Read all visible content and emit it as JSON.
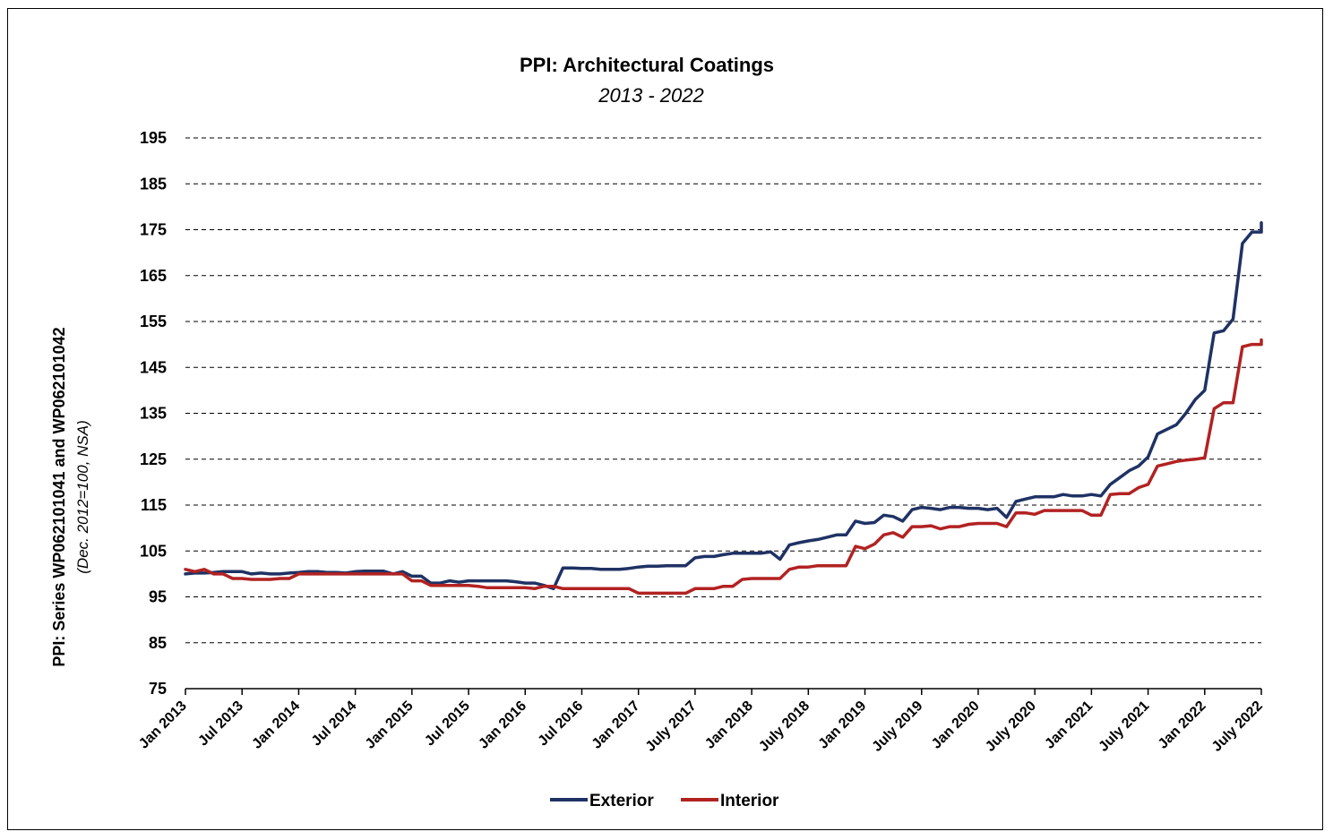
{
  "chart_data": {
    "type": "line",
    "title": "PPI: Architectural Coatings",
    "subtitle": "2013 - 2022",
    "ylabel": "PPI: Series WP062101041 and WP062101042",
    "ylabel_sub": "(Dec. 2012=100, NSA)",
    "xlabel": "",
    "ylim": [
      75,
      195
    ],
    "yticks": [
      75,
      85,
      95,
      105,
      115,
      125,
      135,
      145,
      155,
      165,
      175,
      185,
      195
    ],
    "grid": "horizontal-dashed",
    "legend_position": "bottom-center",
    "xlim": [
      "2013-01",
      "2022-07"
    ],
    "x_tick_labels": [
      {
        "x": "2013-01",
        "label": "Jan 2013"
      },
      {
        "x": "2013-07",
        "label": "Jul 2013"
      },
      {
        "x": "2014-01",
        "label": "Jan 2014"
      },
      {
        "x": "2014-07",
        "label": "Jul 2014"
      },
      {
        "x": "2015-01",
        "label": "Jan 2015"
      },
      {
        "x": "2015-07",
        "label": "Jul 2015"
      },
      {
        "x": "2016-01",
        "label": "Jan 2016"
      },
      {
        "x": "2016-07",
        "label": "Jul 2016"
      },
      {
        "x": "2017-01",
        "label": "Jan 2017"
      },
      {
        "x": "2017-07",
        "label": "July 2017"
      },
      {
        "x": "2018-01",
        "label": "Jan 2018"
      },
      {
        "x": "2018-07",
        "label": "July 2018"
      },
      {
        "x": "2019-01",
        "label": "Jan 2019"
      },
      {
        "x": "2019-07",
        "label": "July 2019"
      },
      {
        "x": "2020-01",
        "label": "Jan 2020"
      },
      {
        "x": "2020-07",
        "label": "July 2020"
      },
      {
        "x": "2021-01",
        "label": "Jan 2021"
      },
      {
        "x": "2021-07",
        "label": "July 2021"
      },
      {
        "x": "2022-01",
        "label": "Jan 2022"
      },
      {
        "x": "2022-07",
        "label": "July 2022"
      }
    ],
    "series": [
      {
        "name": "Exterior",
        "color": "#1f3264",
        "points": [
          [
            "2013-01",
            100.0
          ],
          [
            "2013-02",
            100.2
          ],
          [
            "2013-03",
            100.2
          ],
          [
            "2013-04",
            100.3
          ],
          [
            "2013-05",
            100.5
          ],
          [
            "2013-06",
            100.5
          ],
          [
            "2013-07",
            100.5
          ],
          [
            "2013-08",
            100.0
          ],
          [
            "2013-09",
            100.2
          ],
          [
            "2013-10",
            100.0
          ],
          [
            "2013-11",
            100.0
          ],
          [
            "2013-12",
            100.2
          ],
          [
            "2014-01",
            100.3
          ],
          [
            "2014-02",
            100.5
          ],
          [
            "2014-03",
            100.5
          ],
          [
            "2014-04",
            100.3
          ],
          [
            "2014-05",
            100.3
          ],
          [
            "2014-06",
            100.2
          ],
          [
            "2014-07",
            100.5
          ],
          [
            "2014-08",
            100.6
          ],
          [
            "2014-09",
            100.6
          ],
          [
            "2014-10",
            100.6
          ],
          [
            "2014-11",
            100.0
          ],
          [
            "2014-12",
            100.5
          ],
          [
            "2015-01",
            99.5
          ],
          [
            "2015-02",
            99.5
          ],
          [
            "2015-03",
            98.0
          ],
          [
            "2015-04",
            98.0
          ],
          [
            "2015-05",
            98.5
          ],
          [
            "2015-06",
            98.2
          ],
          [
            "2015-07",
            98.5
          ],
          [
            "2015-08",
            98.5
          ],
          [
            "2015-09",
            98.5
          ],
          [
            "2015-10",
            98.5
          ],
          [
            "2015-11",
            98.5
          ],
          [
            "2015-12",
            98.3
          ],
          [
            "2016-01",
            98.0
          ],
          [
            "2016-02",
            98.0
          ],
          [
            "2016-03",
            97.5
          ],
          [
            "2016-04",
            96.8
          ],
          [
            "2016-05",
            101.3
          ],
          [
            "2016-06",
            101.3
          ],
          [
            "2016-07",
            101.2
          ],
          [
            "2016-08",
            101.2
          ],
          [
            "2016-09",
            101.0
          ],
          [
            "2016-10",
            101.0
          ],
          [
            "2016-11",
            101.0
          ],
          [
            "2016-12",
            101.2
          ],
          [
            "2017-01",
            101.5
          ],
          [
            "2017-02",
            101.7
          ],
          [
            "2017-03",
            101.7
          ],
          [
            "2017-04",
            101.8
          ],
          [
            "2017-05",
            101.8
          ],
          [
            "2017-06",
            101.8
          ],
          [
            "2017-07",
            103.5
          ],
          [
            "2017-08",
            103.8
          ],
          [
            "2017-09",
            103.8
          ],
          [
            "2017-10",
            104.2
          ],
          [
            "2017-11",
            104.5
          ],
          [
            "2017-12",
            104.5
          ],
          [
            "2018-01",
            104.5
          ],
          [
            "2018-02",
            104.5
          ],
          [
            "2018-03",
            104.8
          ],
          [
            "2018-04",
            103.2
          ],
          [
            "2018-05",
            106.3
          ],
          [
            "2018-06",
            106.8
          ],
          [
            "2018-07",
            107.2
          ],
          [
            "2018-08",
            107.5
          ],
          [
            "2018-09",
            108.0
          ],
          [
            "2018-10",
            108.5
          ],
          [
            "2018-11",
            108.5
          ],
          [
            "2018-12",
            111.5
          ],
          [
            "2019-01",
            111.0
          ],
          [
            "2019-02",
            111.2
          ],
          [
            "2019-03",
            112.8
          ],
          [
            "2019-04",
            112.5
          ],
          [
            "2019-05",
            111.5
          ],
          [
            "2019-06",
            114.0
          ],
          [
            "2019-07",
            114.5
          ],
          [
            "2019-08",
            114.3
          ],
          [
            "2019-09",
            114.0
          ],
          [
            "2019-10",
            114.5
          ],
          [
            "2019-11",
            114.5
          ],
          [
            "2019-12",
            114.3
          ],
          [
            "2020-01",
            114.3
          ],
          [
            "2020-02",
            114.0
          ],
          [
            "2020-03",
            114.3
          ],
          [
            "2020-04",
            112.3
          ],
          [
            "2020-05",
            115.8
          ],
          [
            "2020-06",
            116.3
          ],
          [
            "2020-07",
            116.8
          ],
          [
            "2020-08",
            116.8
          ],
          [
            "2020-09",
            116.8
          ],
          [
            "2020-10",
            117.3
          ],
          [
            "2020-11",
            117.0
          ],
          [
            "2020-12",
            117.0
          ],
          [
            "2021-01",
            117.3
          ],
          [
            "2021-02",
            117.0
          ],
          [
            "2021-03",
            119.5
          ],
          [
            "2021-04",
            121.0
          ],
          [
            "2021-05",
            122.5
          ],
          [
            "2021-06",
            123.5
          ],
          [
            "2021-07",
            125.5
          ],
          [
            "2021-08",
            130.5
          ],
          [
            "2021-09",
            131.5
          ],
          [
            "2021-10",
            132.5
          ],
          [
            "2021-11",
            135.0
          ],
          [
            "2021-12",
            138.0
          ],
          [
            "2022-01",
            140.0
          ],
          [
            "2022-02",
            152.5
          ],
          [
            "2022-03",
            153.0
          ],
          [
            "2022-04",
            155.5
          ],
          [
            "2022-05",
            172.0
          ],
          [
            "2022-06",
            174.5
          ],
          [
            "2022-07",
            174.5
          ],
          [
            "2022-08",
            176.5
          ]
        ]
      },
      {
        "name": "Interior",
        "color": "#b22222",
        "points": [
          [
            "2013-01",
            101.0
          ],
          [
            "2013-02",
            100.5
          ],
          [
            "2013-03",
            101.0
          ],
          [
            "2013-04",
            100.0
          ],
          [
            "2013-05",
            100.0
          ],
          [
            "2013-06",
            99.0
          ],
          [
            "2013-07",
            99.0
          ],
          [
            "2013-08",
            98.8
          ],
          [
            "2013-09",
            98.8
          ],
          [
            "2013-10",
            98.8
          ],
          [
            "2013-11",
            99.0
          ],
          [
            "2013-12",
            99.0
          ],
          [
            "2014-01",
            100.0
          ],
          [
            "2014-02",
            100.0
          ],
          [
            "2014-03",
            100.0
          ],
          [
            "2014-04",
            100.0
          ],
          [
            "2014-05",
            100.0
          ],
          [
            "2014-06",
            100.0
          ],
          [
            "2014-07",
            100.0
          ],
          [
            "2014-08",
            100.0
          ],
          [
            "2014-09",
            100.0
          ],
          [
            "2014-10",
            100.0
          ],
          [
            "2014-11",
            100.0
          ],
          [
            "2014-12",
            100.0
          ],
          [
            "2015-01",
            98.5
          ],
          [
            "2015-02",
            98.5
          ],
          [
            "2015-03",
            97.5
          ],
          [
            "2015-04",
            97.5
          ],
          [
            "2015-05",
            97.5
          ],
          [
            "2015-06",
            97.5
          ],
          [
            "2015-07",
            97.5
          ],
          [
            "2015-08",
            97.3
          ],
          [
            "2015-09",
            97.0
          ],
          [
            "2015-10",
            97.0
          ],
          [
            "2015-11",
            97.0
          ],
          [
            "2015-12",
            97.0
          ],
          [
            "2016-01",
            97.0
          ],
          [
            "2016-02",
            96.8
          ],
          [
            "2016-03",
            97.3
          ],
          [
            "2016-04",
            97.3
          ],
          [
            "2016-05",
            96.8
          ],
          [
            "2016-06",
            96.8
          ],
          [
            "2016-07",
            96.8
          ],
          [
            "2016-08",
            96.8
          ],
          [
            "2016-09",
            96.8
          ],
          [
            "2016-10",
            96.8
          ],
          [
            "2016-11",
            96.8
          ],
          [
            "2016-12",
            96.8
          ],
          [
            "2017-01",
            95.8
          ],
          [
            "2017-02",
            95.8
          ],
          [
            "2017-03",
            95.8
          ],
          [
            "2017-04",
            95.8
          ],
          [
            "2017-05",
            95.8
          ],
          [
            "2017-06",
            95.8
          ],
          [
            "2017-07",
            96.8
          ],
          [
            "2017-08",
            96.8
          ],
          [
            "2017-09",
            96.8
          ],
          [
            "2017-10",
            97.3
          ],
          [
            "2017-11",
            97.3
          ],
          [
            "2017-12",
            98.8
          ],
          [
            "2018-01",
            99.0
          ],
          [
            "2018-02",
            99.0
          ],
          [
            "2018-03",
            99.0
          ],
          [
            "2018-04",
            99.0
          ],
          [
            "2018-05",
            101.0
          ],
          [
            "2018-06",
            101.5
          ],
          [
            "2018-07",
            101.5
          ],
          [
            "2018-08",
            101.8
          ],
          [
            "2018-09",
            101.8
          ],
          [
            "2018-10",
            101.8
          ],
          [
            "2018-11",
            101.8
          ],
          [
            "2018-12",
            106.0
          ],
          [
            "2019-01",
            105.5
          ],
          [
            "2019-02",
            106.5
          ],
          [
            "2019-03",
            108.5
          ],
          [
            "2019-04",
            109.0
          ],
          [
            "2019-05",
            108.0
          ],
          [
            "2019-06",
            110.3
          ],
          [
            "2019-07",
            110.3
          ],
          [
            "2019-08",
            110.5
          ],
          [
            "2019-09",
            109.8
          ],
          [
            "2019-10",
            110.3
          ],
          [
            "2019-11",
            110.3
          ],
          [
            "2019-12",
            110.8
          ],
          [
            "2020-01",
            111.0
          ],
          [
            "2020-02",
            111.0
          ],
          [
            "2020-03",
            111.0
          ],
          [
            "2020-04",
            110.3
          ],
          [
            "2020-05",
            113.3
          ],
          [
            "2020-06",
            113.3
          ],
          [
            "2020-07",
            113.0
          ],
          [
            "2020-08",
            113.8
          ],
          [
            "2020-09",
            113.8
          ],
          [
            "2020-10",
            113.8
          ],
          [
            "2020-11",
            113.8
          ],
          [
            "2020-12",
            113.8
          ],
          [
            "2021-01",
            112.8
          ],
          [
            "2021-02",
            112.8
          ],
          [
            "2021-03",
            117.3
          ],
          [
            "2021-04",
            117.5
          ],
          [
            "2021-05",
            117.5
          ],
          [
            "2021-06",
            118.8
          ],
          [
            "2021-07",
            119.5
          ],
          [
            "2021-08",
            123.5
          ],
          [
            "2021-09",
            124.0
          ],
          [
            "2021-10",
            124.5
          ],
          [
            "2021-11",
            124.8
          ],
          [
            "2021-12",
            125.0
          ],
          [
            "2022-01",
            125.3
          ],
          [
            "2022-02",
            136.0
          ],
          [
            "2022-03",
            137.3
          ],
          [
            "2022-04",
            137.3
          ],
          [
            "2022-05",
            149.5
          ],
          [
            "2022-06",
            150.0
          ],
          [
            "2022-07",
            150.0
          ],
          [
            "2022-08",
            151.0
          ]
        ]
      }
    ]
  }
}
